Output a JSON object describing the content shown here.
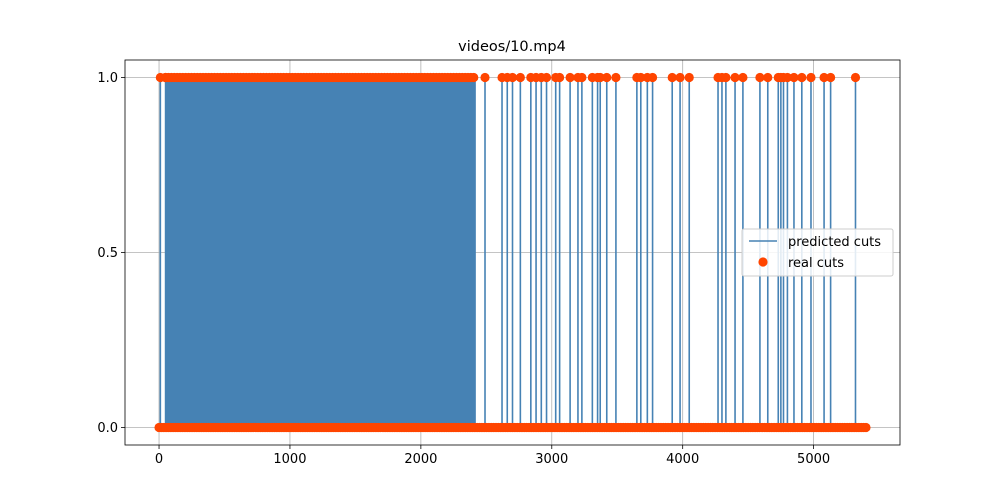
{
  "chart_data": {
    "type": "line",
    "title": "videos/10.mp4",
    "xlabel": "",
    "ylabel": "",
    "xlim": [
      -260,
      5660
    ],
    "ylim": [
      -0.05,
      1.05
    ],
    "x_ticks": [
      0,
      1000,
      2000,
      3000,
      4000,
      5000
    ],
    "x_tick_labels": [
      "0",
      "1000",
      "2000",
      "3000",
      "4000",
      "5000"
    ],
    "y_ticks": [
      0.0,
      0.5,
      1.0
    ],
    "y_tick_labels": [
      "0.0",
      "0.5",
      "1.0"
    ],
    "grid": true,
    "legend_placement": "center-right",
    "colors": {
      "predicted": "#4682b4",
      "real": "#ff4500"
    },
    "dense_region": [
      50,
      2420
    ],
    "series": [
      {
        "name": "predicted cuts",
        "type": "line",
        "cut_frames": [
          10,
          50,
          2490,
          2620,
          2660,
          2700,
          2760,
          2840,
          2880,
          2920,
          2960,
          3030,
          3060,
          3140,
          3200,
          3230,
          3310,
          3350,
          3370,
          3420,
          3490,
          3650,
          3680,
          3730,
          3770,
          3920,
          3980,
          4050,
          4270,
          4300,
          4330,
          4400,
          4460,
          4590,
          4650,
          4730,
          4750,
          4770,
          4800,
          4850,
          4910,
          4980,
          5080,
          5130,
          5320
        ],
        "x_range": [
          0,
          5400
        ]
      },
      {
        "name": "real cuts",
        "type": "scatter",
        "cut_frames": [
          10,
          50,
          2490,
          2620,
          2660,
          2700,
          2760,
          2840,
          2880,
          2920,
          2960,
          3030,
          3060,
          3140,
          3200,
          3230,
          3310,
          3350,
          3370,
          3420,
          3490,
          3650,
          3680,
          3730,
          3770,
          3920,
          3980,
          4050,
          4270,
          4300,
          4330,
          4400,
          4460,
          4590,
          4650,
          4730,
          4750,
          4770,
          4800,
          4850,
          4910,
          4980,
          5080,
          5130,
          5320
        ],
        "x_range": [
          0,
          5400
        ]
      }
    ]
  }
}
